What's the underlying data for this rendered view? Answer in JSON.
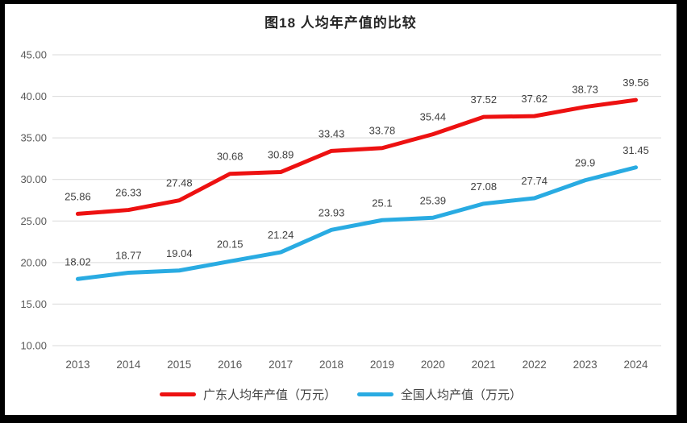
{
  "title": "图18 人均年产值的比较",
  "chart_data": {
    "type": "line",
    "categories": [
      "2013",
      "2014",
      "2015",
      "2016",
      "2017",
      "2018",
      "2019",
      "2020",
      "2021",
      "2022",
      "2023",
      "2024"
    ],
    "series": [
      {
        "name": "广东人均年产值（万元）",
        "color": "#ED1111",
        "values": [
          25.86,
          26.33,
          27.48,
          30.68,
          30.89,
          33.43,
          33.78,
          35.44,
          37.52,
          37.62,
          38.73,
          39.56
        ]
      },
      {
        "name": "全国人均产值（万元）",
        "color": "#29ABE2",
        "values": [
          18.02,
          18.77,
          19.04,
          20.15,
          21.24,
          23.93,
          25.1,
          25.39,
          27.08,
          27.74,
          29.9,
          31.45
        ]
      }
    ],
    "xlabel": "",
    "ylabel": "",
    "ylim": [
      10,
      45
    ],
    "ytick_step": 5,
    "ytick_labels": [
      "10.00",
      "15.00",
      "20.00",
      "25.00",
      "30.00",
      "35.00",
      "40.00",
      "45.00"
    ],
    "grid": true,
    "gridline_color": "#D9D9D9",
    "tick_color": "#595959",
    "data_label_color": "#404040",
    "legend_position": "bottom",
    "data_labels_shown": true
  }
}
